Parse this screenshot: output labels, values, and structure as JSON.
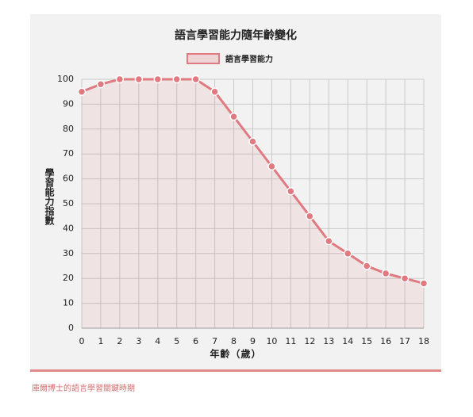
{
  "chart_data": {
    "type": "line",
    "title": "語言學習能力隨年齡變化",
    "x_label": "年齡（歲）",
    "y_label": "學習能力指數",
    "source": "庫爾博士的語言學習關鍵時期",
    "x": [
      0,
      1,
      2,
      3,
      4,
      5,
      6,
      7,
      8,
      9,
      10,
      11,
      12,
      13,
      14,
      15,
      16,
      17,
      18
    ],
    "series": [
      {
        "name": "語言學習能力",
        "color": "#e07a80",
        "values": [
          95,
          98,
          100,
          100,
          100,
          100,
          100,
          95,
          85,
          75,
          65,
          55,
          45,
          35,
          30,
          25,
          22,
          20,
          18
        ]
      }
    ],
    "xlim": [
      0,
      18
    ],
    "xticks": [
      0,
      1,
      2,
      3,
      4,
      5,
      6,
      7,
      8,
      9,
      10,
      11,
      12,
      13,
      14,
      15,
      16,
      17,
      18
    ],
    "ylim": [
      0,
      100
    ],
    "yticks": [
      0,
      10,
      20,
      30,
      40,
      50,
      60,
      70,
      80,
      90,
      100
    ],
    "grid": true,
    "area": true,
    "legend": "top"
  }
}
